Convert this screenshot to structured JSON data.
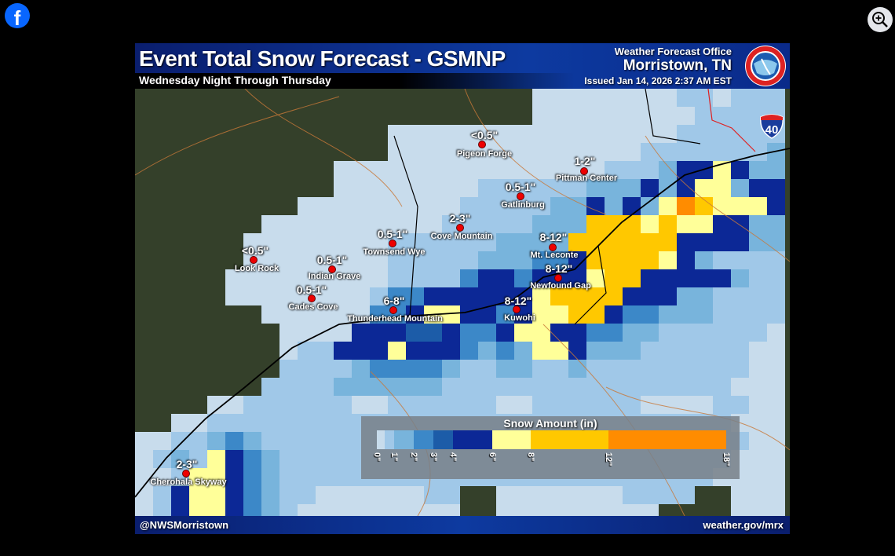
{
  "viewer": {
    "facebook_icon": "facebook-logo-icon",
    "zoom_icon": "zoom-in-icon"
  },
  "header": {
    "title": "Event Total Snow Forecast - GSMNP",
    "subtitle": "Wednesday Night Through Thursday",
    "office_label": "Weather Forecast Office",
    "office_city": "Morristown, TN",
    "issued": "Issued Jan 14, 2026 2:37 AM EST",
    "logo": "National Weather Service"
  },
  "locations": [
    {
      "name": "Pigeon Forge",
      "amount": "<0.5\""
    },
    {
      "name": "Pittman Center",
      "amount": "1-2\""
    },
    {
      "name": "Gatlinburg",
      "amount": "0.5-1\""
    },
    {
      "name": "Cove Mountain",
      "amount": "2-3\""
    },
    {
      "name": "Townsend Wye",
      "amount": "0.5-1\""
    },
    {
      "name": "Look Rock",
      "amount": "<0.5\""
    },
    {
      "name": "Indian Grave",
      "amount": "0.5-1\""
    },
    {
      "name": "Mt. Leconte",
      "amount": "8-12\""
    },
    {
      "name": "Newfound Gap",
      "amount": "8-12\""
    },
    {
      "name": "Cades Cove",
      "amount": "0.5-1\""
    },
    {
      "name": "Thunderhead Mountain",
      "amount": "6-8\""
    },
    {
      "name": "Kuwohi",
      "amount": "8-12\""
    },
    {
      "name": "Cherohala Skyway",
      "amount": "2-3\""
    }
  ],
  "interstate": "40",
  "legend": {
    "title": "Snow Amount (in)",
    "ticks": [
      "0\"",
      "1\"",
      "2\"",
      "3\"",
      "4\"",
      "6\"",
      "8\"",
      "12\"",
      "18\""
    ],
    "bins": [
      {
        "from": 0,
        "to": 0.5,
        "color": "#c8dcec"
      },
      {
        "from": 0.5,
        "to": 1,
        "color": "#a0c8e8"
      },
      {
        "from": 1,
        "to": 2,
        "color": "#78b4dc"
      },
      {
        "from": 2,
        "to": 3,
        "color": "#3c88c8"
      },
      {
        "from": 3,
        "to": 4,
        "color": "#1c5ca8"
      },
      {
        "from": 4,
        "to": 6,
        "color": "#0c2896"
      },
      {
        "from": 6,
        "to": 8,
        "color": "#ffff99"
      },
      {
        "from": 8,
        "to": 12,
        "color": "#ffc800"
      },
      {
        "from": 12,
        "to": 18,
        "color": "#ff8c00"
      }
    ]
  },
  "footer": {
    "handle": "@NWSMorristown",
    "url": "weather.gov/mrx"
  }
}
